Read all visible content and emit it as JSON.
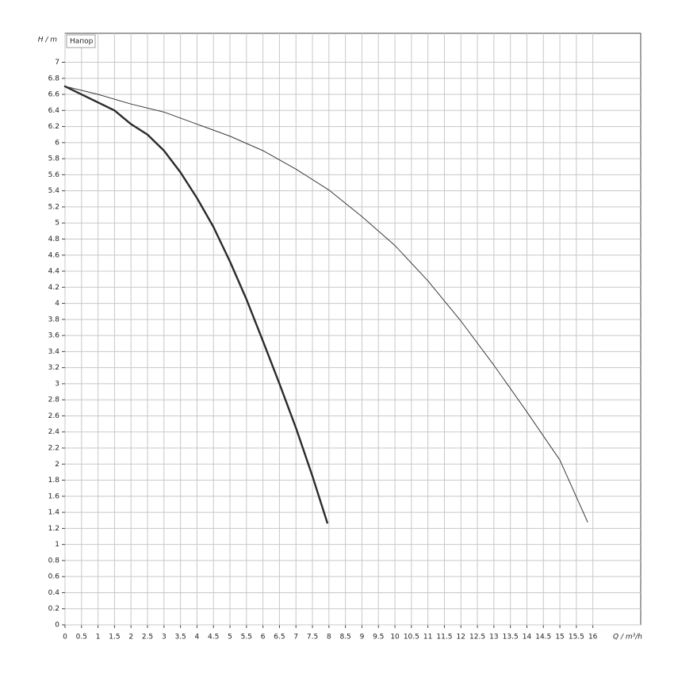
{
  "chart_data": {
    "type": "line",
    "annotation": "Напор",
    "x_label": "Q / m³/h",
    "y_label": "H / m",
    "xlim": [
      0,
      17.45
    ],
    "ylim": [
      0,
      7.36
    ],
    "xticks": [
      0,
      0.5,
      1,
      1.5,
      2,
      2.5,
      3,
      3.5,
      4,
      4.5,
      5,
      5.5,
      6,
      6.5,
      7,
      7.5,
      8,
      8.5,
      9,
      9.5,
      10,
      10.5,
      11,
      11.5,
      12,
      12.5,
      13,
      13.5,
      14,
      14.5,
      15,
      15.5,
      16
    ],
    "yticks": [
      0,
      0.2,
      0.4,
      0.6,
      0.8,
      1,
      1.2,
      1.4,
      1.6,
      1.8,
      2,
      2.2,
      2.4,
      2.6,
      2.8,
      3,
      3.2,
      3.4,
      3.6,
      3.8,
      4,
      4.2,
      4.4,
      4.6,
      4.8,
      5,
      5.2,
      5.4,
      5.6,
      5.8,
      6,
      6.2,
      6.4,
      6.6,
      6.8,
      7
    ],
    "grid": true,
    "series": [
      {
        "color": "#2b2b2b",
        "line_width": 2.4,
        "x": [
          0,
          0.5,
          1,
          1.5,
          2,
          2.5,
          3,
          3.5,
          4,
          4.5,
          5,
          5.5,
          6,
          6.5,
          7,
          7.5,
          7.95
        ],
        "values": [
          6.7,
          6.6,
          6.5,
          6.4,
          6.23,
          6.1,
          5.9,
          5.63,
          5.31,
          4.95,
          4.52,
          4.05,
          3.53,
          3.0,
          2.45,
          1.85,
          1.27
        ]
      },
      {
        "color": "#3a3a3a",
        "line_width": 1,
        "x": [
          0,
          1,
          2,
          3,
          4,
          5,
          6,
          7,
          8,
          9,
          10,
          11,
          12,
          13,
          14,
          15,
          15.84
        ],
        "values": [
          6.7,
          6.6,
          6.48,
          6.38,
          6.23,
          6.08,
          5.9,
          5.67,
          5.41,
          5.08,
          4.72,
          4.28,
          3.78,
          3.23,
          2.65,
          2.05,
          1.28
        ]
      }
    ]
  }
}
